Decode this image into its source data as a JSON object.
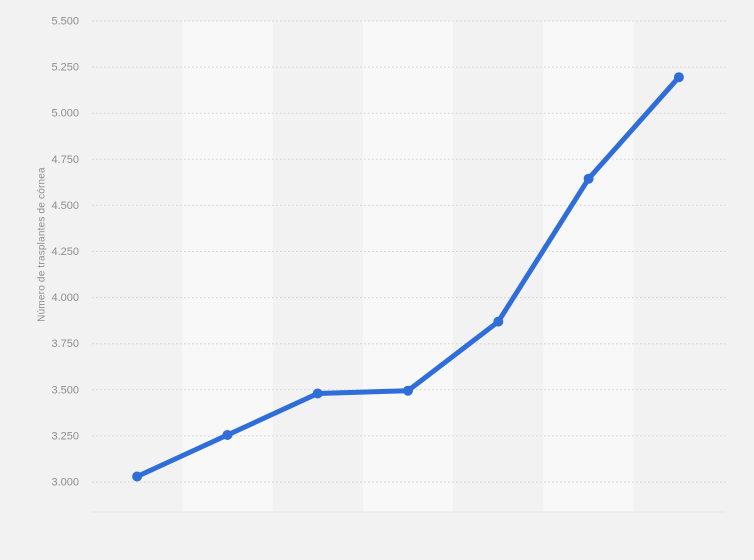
{
  "window": {
    "background": "#f2f2f2"
  },
  "chart_data": {
    "type": "line",
    "title": "",
    "xlabel": "",
    "ylabel": "Número de trasplantes de córnea",
    "x_labels_visible": false,
    "values": [
      3030,
      3255,
      3480,
      3495,
      3870,
      4645,
      5195
    ],
    "ylim": [
      3000,
      5500
    ],
    "y_ticks": [
      5500,
      5250,
      5000,
      4750,
      4500,
      4250,
      4000,
      3750,
      3500,
      3250,
      3000
    ],
    "y_tick_labels": [
      "5.500",
      "5.250",
      "5.000",
      "4.750",
      "4.500",
      "4.250",
      "4.000",
      "3.750",
      "3.500",
      "3.250",
      "3.000"
    ],
    "grid": "horizontal-dotted",
    "legend": "none",
    "plot_bands": "alternating-vertical",
    "colors": {
      "line": "#2f6ed8",
      "point": "#2f6ed8",
      "band": "#f8f8f8",
      "background": "#f2f2f2",
      "grid": "#d2d2d2",
      "plot_edge": "#e6e6e6",
      "tick_text": "#8e8e8e",
      "axis_title_text": "#8e8e8e"
    }
  }
}
